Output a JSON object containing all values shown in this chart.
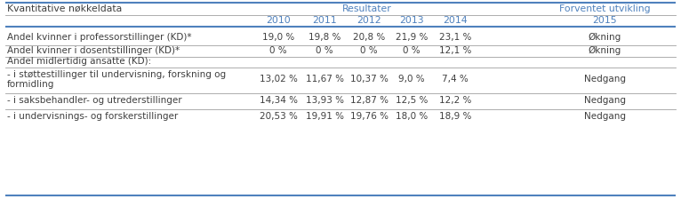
{
  "title_left": "Kvantitative nøkkeldata",
  "header_results": "Resultater",
  "header_forventet": "Forventet utvikling",
  "col_years": [
    "2010",
    "2011",
    "2012",
    "2013",
    "2014",
    "2015"
  ],
  "rows": [
    {
      "label": "Andel kvinner i professorstillinger (KD)*",
      "label2": "",
      "values": [
        "19,0 %",
        "19,8 %",
        "20,8 %",
        "21,9 %",
        "23,1 %",
        "Økning"
      ],
      "separator_below": true,
      "tall": false
    },
    {
      "label": "Andel kvinner i dosentstillinger (KD)*",
      "label2": "",
      "values": [
        "0 %",
        "0 %",
        "0 %",
        "0 %",
        "12,1 %",
        "Økning"
      ],
      "separator_below": true,
      "tall": false
    },
    {
      "label": "Andel midlertidig ansatte (KD):",
      "label2": "",
      "values": [
        "",
        "",
        "",
        "",
        "",
        ""
      ],
      "separator_below": false,
      "tall": false
    },
    {
      "label": "- i støttestillinger til undervisning, forskning og",
      "label2": "formidling",
      "values": [
        "13,02 %",
        "11,67 %",
        "10,37 %",
        "9,0 %",
        "7,4 %",
        "Nedgang"
      ],
      "separator_below": true,
      "tall": true
    },
    {
      "label": "- i saksbehandler- og utrederstillinger",
      "label2": "",
      "values": [
        "14,34 %",
        "13,93 %",
        "12,87 %",
        "12,5 %",
        "12,2 %",
        "Nedgang"
      ],
      "separator_below": true,
      "tall": false
    },
    {
      "label": "- i undervisnings- og forskerstillinger",
      "label2": "",
      "values": [
        "20,53 %",
        "19,91 %",
        "19,76 %",
        "18,0 %",
        "18,9 %",
        "Nedgang"
      ],
      "separator_below": false,
      "tall": false
    }
  ],
  "bg_color": "#ffffff",
  "body_text_color": "#3f3f3f",
  "header_text_color": "#4f81bd",
  "year_color": "#4f81bd",
  "thin_line_color": "#a0a0a0",
  "thick_line_color": "#4f81bd",
  "figsize": [
    7.66,
    2.24
  ],
  "dpi": 100
}
